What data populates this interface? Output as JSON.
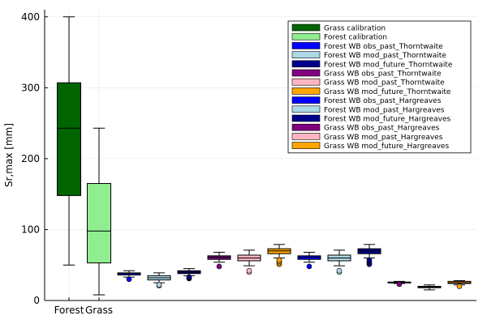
{
  "chart_data": {
    "type": "box",
    "title": "",
    "xlabel": "",
    "ylabel": "Sr,max [mm]",
    "ylim": [
      0,
      410
    ],
    "yticks": [
      0,
      100,
      200,
      300,
      400
    ],
    "xtick_labels": [
      "Forest",
      "Grass"
    ],
    "grid": true,
    "legend_position": "top-right",
    "series": [
      {
        "name": "Grass calibration",
        "color": "#006400",
        "box": {
          "min": 50,
          "q1": 148,
          "median": 243,
          "q3": 307,
          "max": 400
        },
        "outliers": []
      },
      {
        "name": "Forest calibration",
        "color": "#90EE90",
        "box": {
          "min": 8,
          "q1": 53,
          "median": 98,
          "q3": 165,
          "max": 243
        },
        "outliers": []
      },
      {
        "name": "Forest WB obs_past_Thorntwaite",
        "color": "#0000FF",
        "box": {
          "min": 33,
          "q1": 36,
          "median": 38,
          "q3": 39,
          "max": 42
        },
        "outliers": [
          30
        ]
      },
      {
        "name": "Forest WB mod_past_Thorntwaite",
        "color": "#ADD8E6",
        "box": {
          "min": 25,
          "q1": 29,
          "median": 32,
          "q3": 35,
          "max": 39
        },
        "outliers": [
          21,
          22
        ]
      },
      {
        "name": "Forest WB mod_future_Thorntwaite",
        "color": "#00008B",
        "box": {
          "min": 35,
          "q1": 38,
          "median": 40,
          "q3": 42,
          "max": 45
        },
        "outliers": [
          31,
          32,
          33
        ]
      },
      {
        "name": "Grass WB obs_past_Thorntwaite",
        "color": "#800080",
        "box": {
          "min": 54,
          "q1": 58,
          "median": 61,
          "q3": 63,
          "max": 68
        },
        "outliers": [
          48
        ]
      },
      {
        "name": "Grass WB mod_past_Thorntwaite",
        "color": "#FFB6C1",
        "box": {
          "min": 49,
          "q1": 56,
          "median": 60,
          "q3": 64,
          "max": 71
        },
        "outliers": [
          40,
          42
        ]
      },
      {
        "name": "Grass WB mod_future_Thorntwaite",
        "color": "#FFA500",
        "box": {
          "min": 60,
          "q1": 66,
          "median": 70,
          "q3": 73,
          "max": 79
        },
        "outliers": [
          51,
          53,
          55,
          57
        ]
      },
      {
        "name": "Forest WB obs_past_Hargreaves",
        "color": "#0000FF",
        "box": {
          "min": 54,
          "q1": 58,
          "median": 61,
          "q3": 63,
          "max": 68
        },
        "outliers": [
          48
        ]
      },
      {
        "name": "Forest WB mod_past_Hargreaves",
        "color": "#ADD8E6",
        "box": {
          "min": 49,
          "q1": 56,
          "median": 60,
          "q3": 64,
          "max": 71
        },
        "outliers": [
          40,
          42
        ]
      },
      {
        "name": "Forest WB mod_future_Hargreaves",
        "color": "#00008B",
        "box": {
          "min": 60,
          "q1": 66,
          "median": 70,
          "q3": 73,
          "max": 79
        },
        "outliers": [
          51,
          53,
          55,
          57
        ]
      },
      {
        "name": "Grass WB obs_past_Hargreaves",
        "color": "#800080",
        "box": {
          "min": 24,
          "q1": 25,
          "median": 25,
          "q3": 26,
          "max": 27
        },
        "outliers": [
          23
        ]
      },
      {
        "name": "Grass WB mod_past_Hargreaves",
        "color": "#FFB6C1",
        "box": {
          "min": 15,
          "q1": 18,
          "median": 19,
          "q3": 20,
          "max": 22
        },
        "outliers": []
      },
      {
        "name": "Grass WB mod_future_Hargreaves",
        "color": "#FFA500",
        "box": {
          "min": 22,
          "q1": 24,
          "median": 25,
          "q3": 27,
          "max": 28
        },
        "outliers": [
          20
        ]
      }
    ]
  }
}
